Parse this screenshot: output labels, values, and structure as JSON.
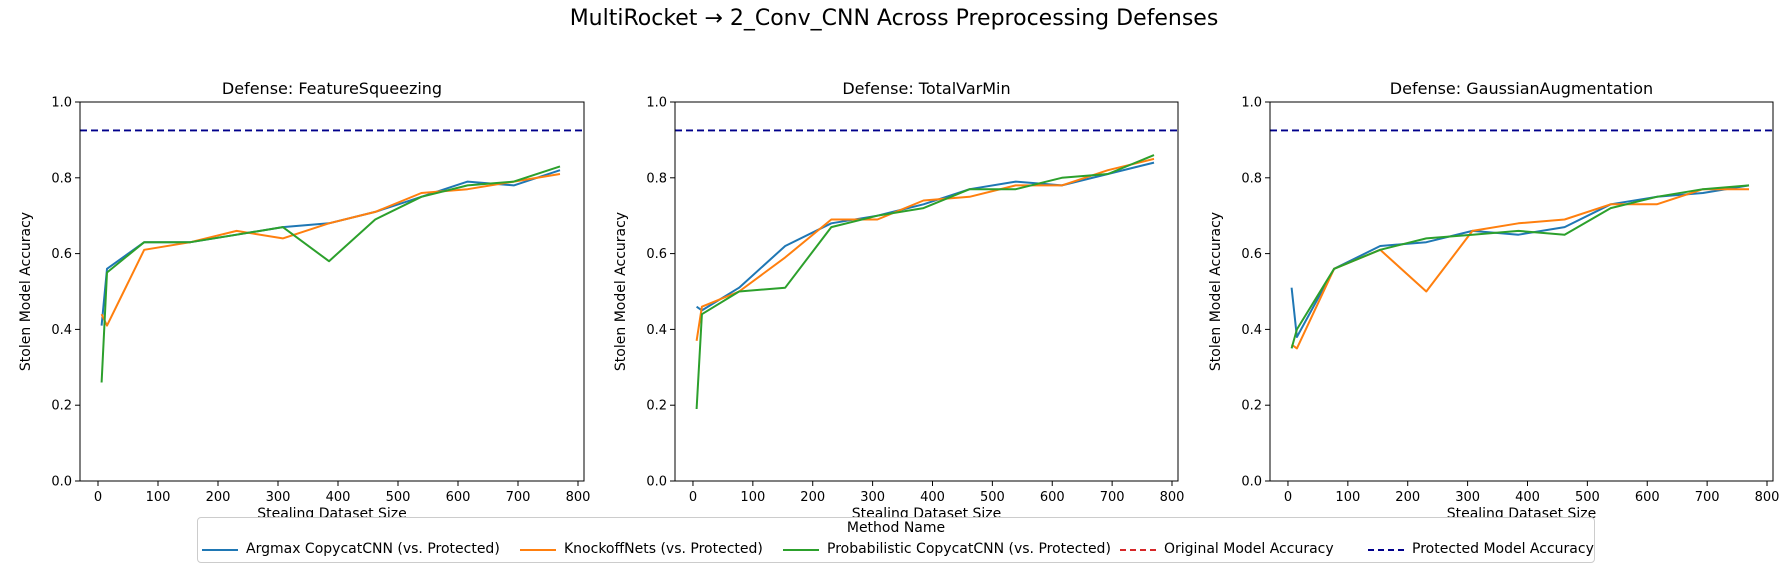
{
  "suptitle": "MultiRocket → 2_Conv_CNN Across Preprocessing Defenses",
  "legend": {
    "title": "Method Name",
    "items": [
      {
        "label": "Argmax CopycatCNN (vs. Protected)",
        "color": "#1f77b4",
        "style": "solid"
      },
      {
        "label": "KnockoffNets (vs. Protected)",
        "color": "#ff7f0e",
        "style": "solid"
      },
      {
        "label": "Probabilistic CopycatCNN (vs. Protected)",
        "color": "#2ca02c",
        "style": "solid"
      },
      {
        "label": "Original Model Accuracy",
        "color": "#d62728",
        "style": "dashed"
      },
      {
        "label": "Protected Model Accuracy",
        "color": "#00008b",
        "style": "dashed"
      }
    ]
  },
  "chart_data": [
    {
      "type": "line",
      "title": "Defense: FeatureSqueezing",
      "xlabel": "Stealing Dataset Size",
      "ylabel": "Stolen Model Accuracy",
      "xlim": [
        -30,
        810
      ],
      "ylim": [
        0,
        1.0
      ],
      "xticks": [
        0,
        100,
        200,
        300,
        400,
        500,
        600,
        700,
        800
      ],
      "yticks": [
        0.0,
        0.2,
        0.4,
        0.6,
        0.8,
        1.0
      ],
      "grid": false,
      "protected_accuracy": 0.925,
      "x": [
        6,
        15,
        77,
        154,
        231,
        308,
        385,
        462,
        539,
        616,
        693,
        770
      ],
      "series": [
        {
          "name": "Argmax CopycatCNN (vs. Protected)",
          "color": "#1f77b4",
          "values": [
            0.41,
            0.56,
            0.63,
            0.63,
            0.65,
            0.67,
            0.68,
            0.71,
            0.75,
            0.79,
            0.78,
            0.82
          ]
        },
        {
          "name": "KnockoffNets (vs. Protected)",
          "color": "#ff7f0e",
          "values": [
            0.44,
            0.41,
            0.61,
            0.63,
            0.66,
            0.64,
            0.68,
            0.71,
            0.76,
            0.77,
            0.79,
            0.81
          ]
        },
        {
          "name": "Probabilistic CopycatCNN (vs. Protected)",
          "color": "#2ca02c",
          "values": [
            0.26,
            0.55,
            0.63,
            0.63,
            0.65,
            0.67,
            0.58,
            0.69,
            0.75,
            0.78,
            0.79,
            0.83
          ]
        }
      ]
    },
    {
      "type": "line",
      "title": "Defense: TotalVarMin",
      "xlabel": "Stealing Dataset Size",
      "ylabel": "Stolen Model Accuracy",
      "xlim": [
        -30,
        810
      ],
      "ylim": [
        0,
        1.0
      ],
      "xticks": [
        0,
        100,
        200,
        300,
        400,
        500,
        600,
        700,
        800
      ],
      "yticks": [
        0.0,
        0.2,
        0.4,
        0.6,
        0.8,
        1.0
      ],
      "grid": false,
      "protected_accuracy": 0.925,
      "x": [
        6,
        15,
        77,
        154,
        231,
        308,
        385,
        462,
        539,
        616,
        693,
        770
      ],
      "series": [
        {
          "name": "Argmax CopycatCNN (vs. Protected)",
          "color": "#1f77b4",
          "values": [
            0.46,
            0.45,
            0.51,
            0.62,
            0.68,
            0.7,
            0.73,
            0.77,
            0.79,
            0.78,
            0.81,
            0.84
          ]
        },
        {
          "name": "KnockoffNets (vs. Protected)",
          "color": "#ff7f0e",
          "values": [
            0.37,
            0.46,
            0.5,
            0.59,
            0.69,
            0.69,
            0.74,
            0.75,
            0.78,
            0.78,
            0.82,
            0.85
          ]
        },
        {
          "name": "Probabilistic CopycatCNN (vs. Protected)",
          "color": "#2ca02c",
          "values": [
            0.19,
            0.44,
            0.5,
            0.51,
            0.67,
            0.7,
            0.72,
            0.77,
            0.77,
            0.8,
            0.81,
            0.86
          ]
        }
      ]
    },
    {
      "type": "line",
      "title": "Defense: GaussianAugmentation",
      "xlabel": "Stealing Dataset Size",
      "ylabel": "Stolen Model Accuracy",
      "xlim": [
        -30,
        810
      ],
      "ylim": [
        0,
        1.0
      ],
      "xticks": [
        0,
        100,
        200,
        300,
        400,
        500,
        600,
        700,
        800
      ],
      "yticks": [
        0.0,
        0.2,
        0.4,
        0.6,
        0.8,
        1.0
      ],
      "grid": false,
      "protected_accuracy": 0.925,
      "x": [
        6,
        15,
        77,
        154,
        231,
        308,
        385,
        462,
        539,
        616,
        693,
        770
      ],
      "series": [
        {
          "name": "Argmax CopycatCNN (vs. Protected)",
          "color": "#1f77b4",
          "values": [
            0.51,
            0.38,
            0.56,
            0.62,
            0.63,
            0.66,
            0.65,
            0.67,
            0.73,
            0.75,
            0.76,
            0.78
          ]
        },
        {
          "name": "KnockoffNets (vs. Protected)",
          "color": "#ff7f0e",
          "values": [
            0.36,
            0.35,
            0.56,
            0.61,
            0.5,
            0.66,
            0.68,
            0.69,
            0.73,
            0.73,
            0.77,
            0.77
          ]
        },
        {
          "name": "Probabilistic CopycatCNN (vs. Protected)",
          "color": "#2ca02c",
          "values": [
            0.35,
            0.4,
            0.56,
            0.61,
            0.64,
            0.65,
            0.66,
            0.65,
            0.72,
            0.75,
            0.77,
            0.78
          ]
        }
      ]
    }
  ]
}
